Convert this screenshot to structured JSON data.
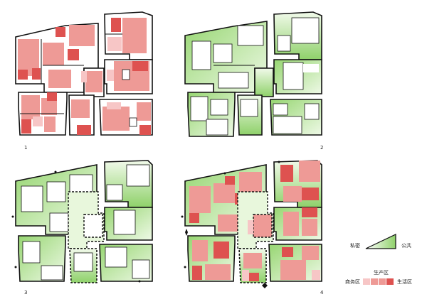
{
  "panels": [
    {
      "number": "1",
      "theme": "commercial-residential"
    },
    {
      "number": "2",
      "theme": "private-public"
    },
    {
      "number": "3",
      "theme": "private-public"
    },
    {
      "number": "4",
      "theme": "combined"
    }
  ],
  "legend": {
    "private_label": "私密",
    "public_label": "公共",
    "production_label": "生产区",
    "commercial_label": "商务区",
    "living_label": "生活区"
  },
  "colors": {
    "light_pink": "#f7c6c6",
    "pink": "#ee9a96",
    "red": "#de5250",
    "green": "#a9de8a",
    "pale_green": "#e8f7dc",
    "outline": "#111111"
  }
}
